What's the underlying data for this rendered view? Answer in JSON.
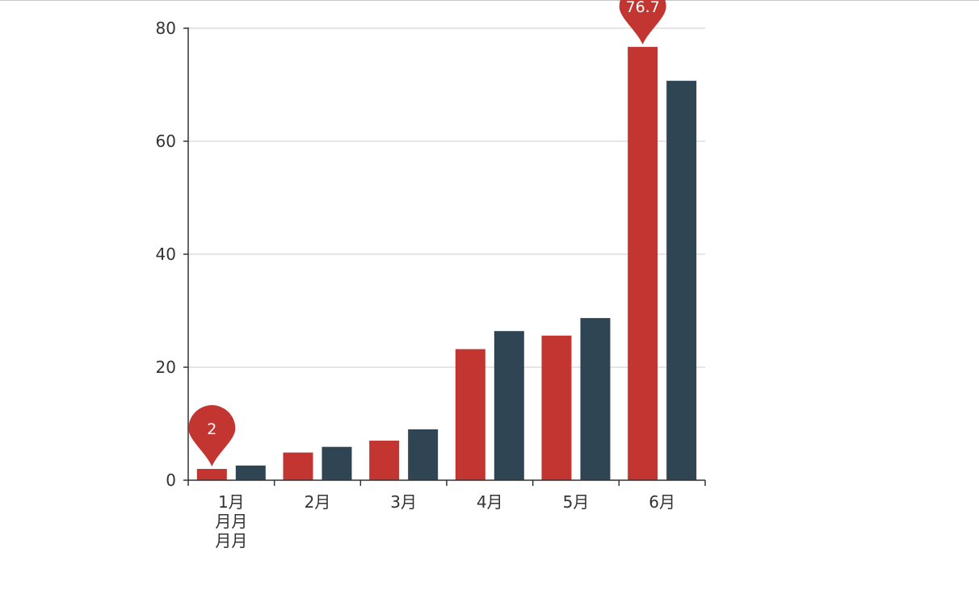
{
  "chart_data": {
    "type": "bar",
    "categories": [
      "1月",
      "2月",
      "3月",
      "4月",
      "5月",
      "6月"
    ],
    "category_wrap_lines": [
      [
        "1月",
        "月月",
        "月月"
      ],
      [
        "2月"
      ],
      [
        "3月"
      ],
      [
        "4月"
      ],
      [
        "5月"
      ],
      [
        "6月"
      ]
    ],
    "series": [
      {
        "values": [
          2.0,
          4.9,
          7.0,
          23.2,
          25.6,
          76.7
        ],
        "color": "#c23531"
      },
      {
        "values": [
          2.6,
          5.9,
          9.0,
          26.4,
          28.7,
          70.7
        ],
        "color": "#2f4554"
      }
    ],
    "ylim": [
      0,
      80
    ],
    "yticks": [
      0,
      20,
      40,
      60,
      80
    ],
    "ytick_labels": [
      "0",
      "20",
      "40",
      "60",
      "80"
    ],
    "grid": true,
    "mark_points": [
      {
        "series": 0,
        "category": "1月",
        "value": 2,
        "label": "2"
      },
      {
        "series": 0,
        "category": "6月",
        "value": 76.7,
        "label": "76.7"
      }
    ]
  }
}
